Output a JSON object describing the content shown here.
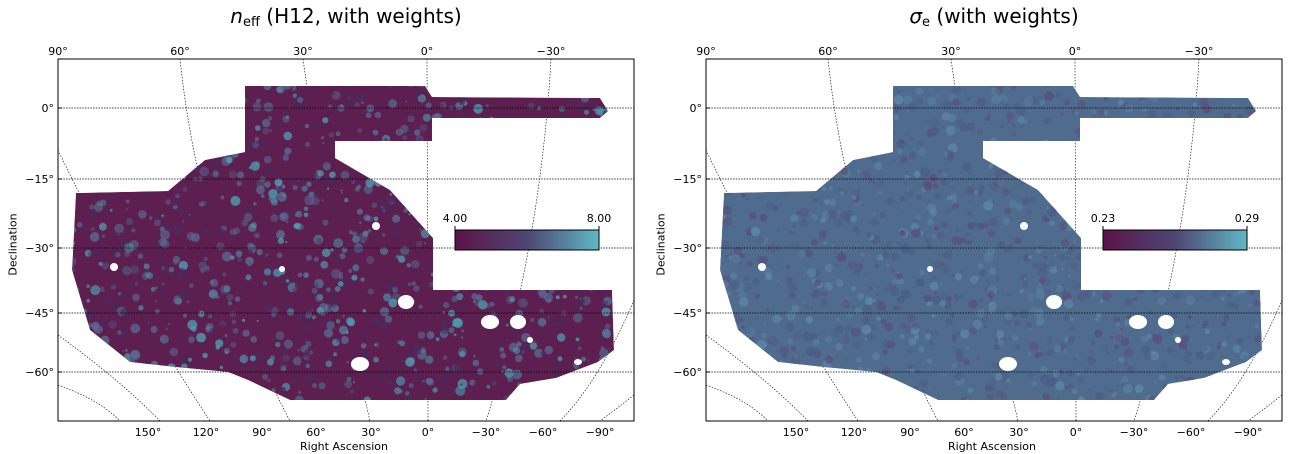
{
  "chart_data": [
    {
      "type": "heatmap",
      "title": {
        "symbol": "n",
        "subscript": "eff",
        "rest": " (H12, with weights)"
      },
      "xlabel": "Right Ascension",
      "ylabel": "Declination",
      "top_ticks": [
        "90°",
        "60°",
        "30°",
        "0°",
        "−30°"
      ],
      "bottom_ticks": [
        "150°",
        "120°",
        "90°",
        "60°",
        "30°",
        "0°",
        "−30°",
        "−60°",
        "−90°"
      ],
      "y_ticks": [
        "0°",
        "−15°",
        "−30°",
        "−45°",
        "−60°"
      ],
      "colorbar": {
        "min": "4.00",
        "max": "8.00",
        "min_value": 4.0,
        "max_value": 8.0,
        "colors": [
          "#5a1448",
          "#4e4672",
          "#5fb8c4"
        ]
      },
      "map_base_color": "#5c1f4f",
      "map_noise_colors": [
        "#4a2a5e",
        "#5a6d96",
        "#4fa0b4"
      ]
    },
    {
      "type": "heatmap",
      "title": {
        "symbol": "σ",
        "subscript": "e",
        "rest": " (with weights)"
      },
      "xlabel": "Right Ascension",
      "ylabel": "Declination",
      "top_ticks": [
        "90°",
        "60°",
        "30°",
        "0°",
        "−30°"
      ],
      "bottom_ticks": [
        "150°",
        "120°",
        "90°",
        "60°",
        "30°",
        "0°",
        "−30°",
        "−60°",
        "−90°"
      ],
      "y_ticks": [
        "0°",
        "−15°",
        "−30°",
        "−45°",
        "−60°"
      ],
      "colorbar": {
        "min": "0.23",
        "max": "0.29",
        "min_value": 0.23,
        "max_value": 0.29,
        "colors": [
          "#5a1448",
          "#4e4672",
          "#5fb8c4"
        ]
      },
      "map_base_color": "#4f6b8e",
      "map_noise_colors": [
        "#5b4d7a",
        "#5d8aa6",
        "#4a5d86"
      ]
    }
  ]
}
